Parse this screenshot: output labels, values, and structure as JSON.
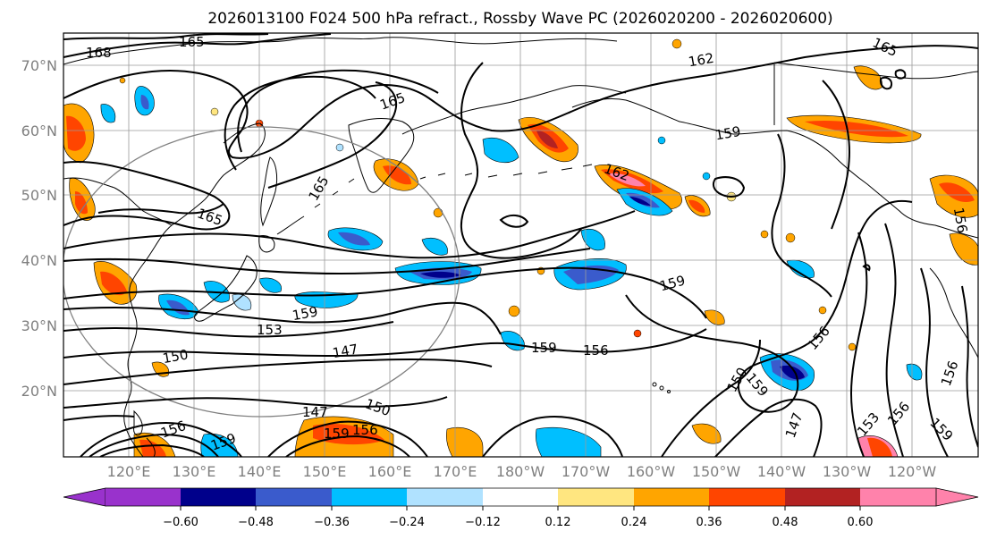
{
  "title": "2026013100 F024 500 hPa refract., Rossby Wave PC (2026020200 - 2026020600)",
  "lat_labels": [
    "70°N",
    "60°N",
    "50°N",
    "40°N",
    "30°N",
    "20°N"
  ],
  "lon_labels": [
    "120°E",
    "130°E",
    "140°E",
    "150°E",
    "160°E",
    "170°E",
    "180°W",
    "170°W",
    "160°W",
    "150°W",
    "140°W",
    "130°W",
    "120°W"
  ],
  "colorbar": {
    "ticks": [
      "−0.60",
      "−0.48",
      "−0.36",
      "−0.24",
      "−0.12",
      "0.12",
      "0.24",
      "0.36",
      "0.48",
      "0.60"
    ],
    "colors": [
      "#9932cc",
      "#00008b",
      "#3a5bcc",
      "#00bfff",
      "#b0e2ff",
      "#ffffff",
      "#ffe680",
      "#ffa500",
      "#ff4500",
      "#b22222",
      "#ff82ab"
    ]
  },
  "contour_labels": [
    "168",
    "165",
    "165",
    "162",
    "165",
    "159",
    "165",
    "165",
    "162",
    "156",
    "159",
    "153",
    "147",
    "150",
    "159",
    "156",
    "159",
    "156",
    "150",
    "159",
    "147",
    "156",
    "153",
    "156",
    "159",
    "147",
    "150",
    "156",
    "159",
    "156",
    "159"
  ],
  "legend_colors": {
    "contour": "#000000",
    "grid": "#9a9a9a",
    "label": "#7f7f7f"
  }
}
